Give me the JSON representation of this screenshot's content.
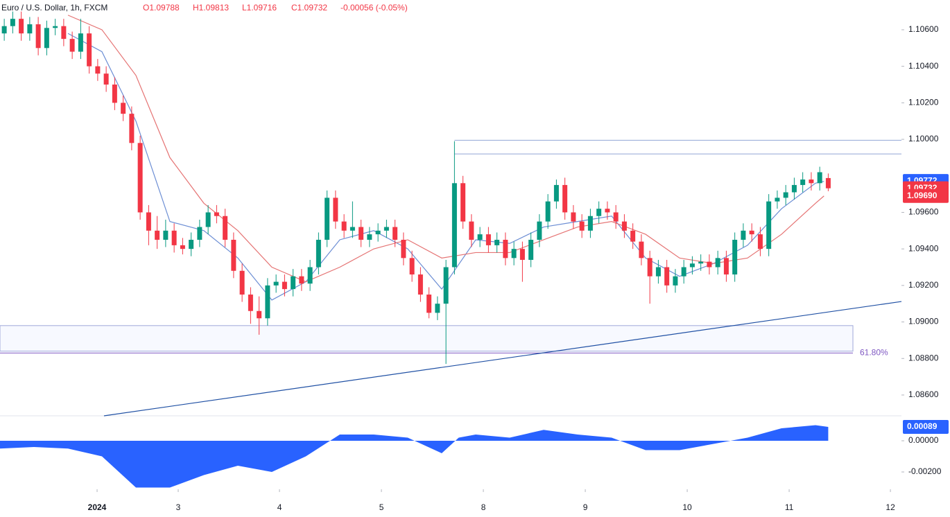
{
  "header": {
    "symbol": "Euro / U.S. Dollar, 1h, FXCM",
    "open": "O1.09788",
    "high": "H1.09813",
    "low": "L1.09716",
    "close": "C1.09732",
    "change": "-0.00056 (-0.05%)"
  },
  "chart_data": [
    {
      "type": "candlestick",
      "up_color": "#089981",
      "down_color": "#f23645",
      "xlim": [
        0,
        106.12
      ],
      "ylim": [
        1.08486,
        1.10763
      ],
      "xticks": [
        {
          "value": 11.43,
          "label": "2024"
        },
        {
          "value": 20.98,
          "label": "3"
        },
        {
          "value": 32.9,
          "label": "4"
        },
        {
          "value": 44.9,
          "label": "5"
        },
        {
          "value": 56.9,
          "label": "8"
        },
        {
          "value": 68.9,
          "label": "9"
        },
        {
          "value": 80.9,
          "label": "10"
        },
        {
          "value": 92.9,
          "label": "11"
        },
        {
          "value": 104.82,
          "label": "12"
        }
      ],
      "yticks": [
        {
          "value": 1.106,
          "label": "1.10600"
        },
        {
          "value": 1.104,
          "label": "1.10400"
        },
        {
          "value": 1.102,
          "label": "1.10200"
        },
        {
          "value": 1.1,
          "label": "1.10000"
        },
        {
          "value": 1.096,
          "label": "1.09600"
        },
        {
          "value": 1.094,
          "label": "1.09400"
        },
        {
          "value": 1.092,
          "label": "1.09200"
        },
        {
          "value": 1.09,
          "label": "1.09000"
        },
        {
          "value": 1.088,
          "label": "1.08800"
        },
        {
          "value": 1.086,
          "label": "1.08600"
        }
      ],
      "candles": [
        [
          1.1058,
          1.1066,
          1.1054,
          1.1062
        ],
        [
          1.1062,
          1.107,
          1.1058,
          1.1066
        ],
        [
          1.1066,
          1.107,
          1.1054,
          1.1058
        ],
        [
          1.1058,
          1.1067,
          1.1054,
          1.1063
        ],
        [
          1.1063,
          1.1067,
          1.1046,
          1.105
        ],
        [
          1.105,
          1.1065,
          1.1046,
          1.1061
        ],
        [
          1.1061,
          1.1066,
          1.1057,
          1.1062
        ],
        [
          1.1062,
          1.1066,
          1.1051,
          1.1055
        ],
        [
          1.1055,
          1.1059,
          1.1044,
          1.1048
        ],
        [
          1.1048,
          1.1066,
          1.1044,
          1.1058
        ],
        [
          1.1058,
          1.1062,
          1.1036,
          1.104
        ],
        [
          1.104,
          1.1044,
          1.1032,
          1.1036
        ],
        [
          1.1036,
          1.104,
          1.1026,
          1.103
        ],
        [
          1.103,
          1.1034,
          1.1016,
          1.102
        ],
        [
          1.102,
          1.1024,
          1.101,
          1.1014
        ],
        [
          1.1014,
          1.1018,
          1.0994,
          1.0998
        ],
        [
          1.0998,
          1.1002,
          1.0956,
          1.096
        ],
        [
          1.096,
          1.0964,
          1.0942,
          1.095
        ],
        [
          1.095,
          1.0958,
          1.094,
          1.0945
        ],
        [
          1.0945,
          1.0956,
          1.0941,
          1.095
        ],
        [
          1.095,
          1.0954,
          1.0938,
          1.0942
        ],
        [
          1.0942,
          1.0946,
          1.0937,
          1.094
        ],
        [
          1.094,
          1.0949,
          1.0936,
          1.0945
        ],
        [
          1.0945,
          1.0956,
          1.0941,
          1.0952
        ],
        [
          1.0952,
          1.0964,
          1.0948,
          1.096
        ],
        [
          1.096,
          1.0964,
          1.0954,
          1.0958
        ],
        [
          1.0958,
          1.0962,
          1.0941,
          1.0945
        ],
        [
          1.0945,
          1.0949,
          1.0924,
          1.0928
        ],
        [
          1.0928,
          1.0932,
          1.0911,
          1.0915
        ],
        [
          1.0915,
          1.0919,
          1.0899,
          1.0906
        ],
        [
          1.0906,
          1.0914,
          1.0893,
          1.0902
        ],
        [
          1.0902,
          1.0924,
          1.0898,
          1.092
        ],
        [
          1.092,
          1.0926,
          1.0916,
          1.0922
        ],
        [
          1.0922,
          1.0926,
          1.0914,
          1.0918
        ],
        [
          1.0918,
          1.0929,
          1.0914,
          1.0925
        ],
        [
          1.0925,
          1.0929,
          1.0917,
          1.0921
        ],
        [
          1.0921,
          1.0934,
          1.0917,
          1.093
        ],
        [
          1.093,
          1.0949,
          1.0926,
          1.0945
        ],
        [
          1.0945,
          1.0972,
          1.0941,
          1.0968
        ],
        [
          1.0968,
          1.0972,
          1.0951,
          1.0955
        ],
        [
          1.0955,
          1.0959,
          1.0946,
          1.095
        ],
        [
          1.095,
          1.0966,
          1.0946,
          1.0952
        ],
        [
          1.0952,
          1.0956,
          1.0941,
          1.0945
        ],
        [
          1.0945,
          1.0952,
          1.0941,
          1.0948
        ],
        [
          1.0948,
          1.0954,
          1.0944,
          1.095
        ],
        [
          1.095,
          1.0956,
          1.0946,
          1.0952
        ],
        [
          1.0952,
          1.0956,
          1.0941,
          1.0945
        ],
        [
          1.0945,
          1.0949,
          1.0931,
          1.0935
        ],
        [
          1.0935,
          1.0939,
          1.0922,
          1.0926
        ],
        [
          1.0926,
          1.093,
          1.0911,
          1.0915
        ],
        [
          1.0915,
          1.0919,
          1.0902,
          1.0905
        ],
        [
          1.0905,
          1.0914,
          1.0901,
          1.091
        ],
        [
          1.091,
          1.0934,
          1.0877,
          1.093
        ],
        [
          1.093,
          1.0999,
          1.0926,
          1.0976
        ],
        [
          1.0976,
          1.098,
          1.0951,
          1.0955
        ],
        [
          1.0955,
          1.0959,
          1.0941,
          1.0945
        ],
        [
          1.0945,
          1.0952,
          1.0941,
          1.0948
        ],
        [
          1.0948,
          1.0952,
          1.0938,
          1.0942
        ],
        [
          1.0942,
          1.0949,
          1.0938,
          1.0945
        ],
        [
          1.0945,
          1.0949,
          1.0931,
          1.0935
        ],
        [
          1.0935,
          1.0944,
          1.0931,
          1.094
        ],
        [
          1.094,
          1.0944,
          1.0922,
          1.0934
        ],
        [
          1.0934,
          1.0949,
          1.093,
          1.0945
        ],
        [
          1.0945,
          1.0959,
          1.0941,
          1.0955
        ],
        [
          1.0955,
          1.097,
          1.0951,
          1.0966
        ],
        [
          1.0966,
          1.0978,
          1.0962,
          1.0975
        ],
        [
          1.0975,
          1.0979,
          1.0956,
          1.096
        ],
        [
          1.096,
          1.0964,
          1.0951,
          1.0955
        ],
        [
          1.0955,
          1.0959,
          1.0946,
          1.095
        ],
        [
          1.095,
          1.0962,
          1.0946,
          1.0958
        ],
        [
          1.0958,
          1.0966,
          1.0954,
          1.0962
        ],
        [
          1.0962,
          1.0966,
          1.0956,
          1.096
        ],
        [
          1.096,
          1.0964,
          1.0951,
          1.0955
        ],
        [
          1.0955,
          1.0959,
          1.0946,
          1.095
        ],
        [
          1.095,
          1.0954,
          1.094,
          1.0944
        ],
        [
          1.0944,
          1.0948,
          1.0931,
          1.0935
        ],
        [
          1.0935,
          1.0939,
          1.091,
          1.0925
        ],
        [
          1.0925,
          1.0934,
          1.0921,
          1.093
        ],
        [
          1.093,
          1.0934,
          1.0916,
          1.092
        ],
        [
          1.092,
          1.0929,
          1.0916,
          1.0925
        ],
        [
          1.0925,
          1.0934,
          1.0921,
          1.093
        ],
        [
          1.093,
          1.0936,
          1.0926,
          1.0932
        ],
        [
          1.0932,
          1.0937,
          1.0928,
          1.0933
        ],
        [
          1.0933,
          1.0937,
          1.0926,
          1.093
        ],
        [
          1.093,
          1.0939,
          1.0926,
          1.0935
        ],
        [
          1.0935,
          1.0939,
          1.0922,
          1.0926
        ],
        [
          1.0926,
          1.0949,
          1.0922,
          1.0945
        ],
        [
          1.0945,
          1.0954,
          1.0941,
          1.095
        ],
        [
          1.095,
          1.0954,
          1.0944,
          1.0948
        ],
        [
          1.0948,
          1.0952,
          1.0936,
          1.094
        ],
        [
          1.094,
          1.097,
          1.0936,
          1.0966
        ],
        [
          1.0966,
          1.0972,
          1.0962,
          1.0968
        ],
        [
          1.0968,
          1.0975,
          1.0964,
          1.0971
        ],
        [
          1.0971,
          1.0979,
          1.0967,
          1.0975
        ],
        [
          1.0975,
          1.0982,
          1.0971,
          1.0978
        ],
        [
          1.0978,
          1.0982,
          1.0972,
          1.0976
        ],
        [
          1.0976,
          1.0985,
          1.0972,
          1.0982
        ],
        [
          1.09788,
          1.09813,
          1.09716,
          1.09732
        ]
      ],
      "ma_x": [
        8,
        12,
        16,
        20,
        24,
        28,
        32,
        36,
        40,
        44,
        48,
        52,
        56,
        60,
        64,
        68,
        72,
        76,
        80,
        84,
        88,
        92,
        96,
        97
      ],
      "ma": [
        {
          "color": "#6c8ed4",
          "values": [
            1.1058,
            1.1048,
            1.101,
            1.0955,
            1.095,
            1.0935,
            1.0912,
            1.0922,
            1.0945,
            1.095,
            1.094,
            1.0918,
            1.0945,
            1.0943,
            1.0952,
            1.0955,
            1.0958,
            1.0935,
            1.0925,
            1.0932,
            1.0942,
            1.0962,
            1.0976,
            1.0977
          ]
        },
        {
          "color": "#e57373",
          "values": [
            1.1068,
            1.106,
            1.1035,
            1.099,
            1.0965,
            1.095,
            1.093,
            1.0922,
            1.093,
            1.094,
            1.0945,
            1.0935,
            1.0938,
            1.0938,
            1.0945,
            1.0952,
            1.0955,
            1.0948,
            1.0935,
            1.0932,
            1.0935,
            1.0948,
            1.0965,
            1.0969
          ]
        }
      ],
      "resistance": [
        {
          "value": 1.09995,
          "from": 53.5
        },
        {
          "value": 1.0992,
          "from": 53.5
        }
      ],
      "zone": [
        1.0884,
        1.0898
      ],
      "fib": {
        "value": 1.0883,
        "label": "61.80%"
      },
      "trendline": {
        "x": [
          12.24,
          106.12
        ],
        "y": [
          1.08486,
          1.09112
        ]
      },
      "price_labels": [
        {
          "value": 1.09772,
          "color": "#2962ff"
        },
        {
          "value": 1.09732,
          "color": "#f23645"
        },
        {
          "value": 1.0969,
          "label": "1.09690",
          "color": "#f23645"
        }
      ]
    },
    {
      "type": "area",
      "color": "#2962ff",
      "xlim": [
        0,
        106.12
      ],
      "ylim": [
        -0.00311,
        0.0016
      ],
      "yticks": [
        {
          "value": 0,
          "label": "0.00000"
        },
        {
          "value": -0.002,
          "label": "-0.00200"
        }
      ],
      "x": [
        0,
        4,
        8,
        12,
        16,
        20,
        24,
        28,
        32,
        36,
        40,
        44,
        48,
        52,
        54,
        56,
        60,
        64,
        68,
        72,
        76,
        80,
        84,
        88,
        92,
        96,
        97.5
      ],
      "values": [
        -0.0005,
        -0.0004,
        -0.0005,
        -0.001,
        -0.003,
        -0.003,
        -0.0022,
        -0.0016,
        -0.002,
        -0.001,
        0.0004,
        0.0004,
        0.0002,
        -0.0008,
        0.0002,
        0.0004,
        0.0002,
        0.0007,
        0.0004,
        0.0002,
        -0.0006,
        -0.0006,
        -0.0002,
        0.0002,
        0.0008,
        0.001,
        0.00089
      ],
      "current": {
        "value": 0.00089,
        "label": "0.00089"
      }
    }
  ]
}
